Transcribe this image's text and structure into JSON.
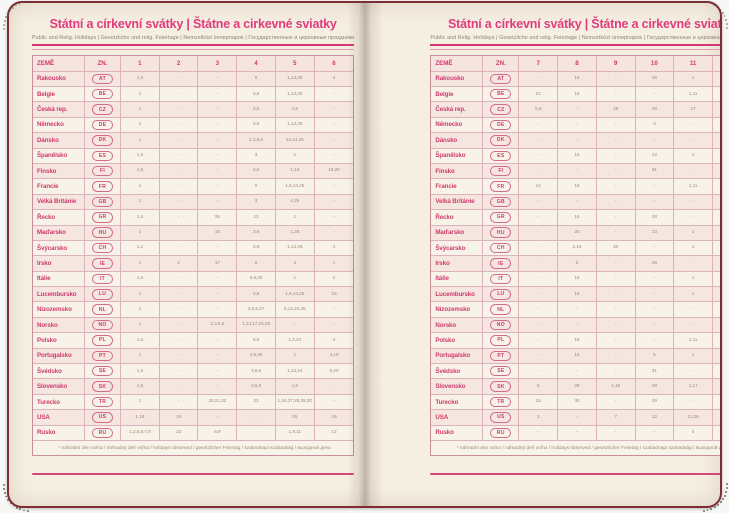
{
  "book": {
    "shared": {
      "title": "Státní a církevní svátky | Štátne a cirkevné sviatky",
      "subtitle": "Public and Relig. Holidays | Gesetzliche und relig. Feiertage | Nemzetközi ünnepnapok | Государственные и церковные праздники",
      "footnote": "* náhradní den volna / náhradný deň voľna / holidays observed / gesetzlicher Feiertag / szabadnapi szabadság / выходной день"
    },
    "left": {
      "columns": [
        "ZEMĚ",
        "ZN.",
        "1",
        "2",
        "3",
        "4",
        "5",
        "6"
      ],
      "rows": [
        {
          "country": "Rakousko",
          "code": "AT",
          "months": [
            "1,6",
            "-",
            "-",
            "6",
            "1,14,25",
            "4"
          ]
        },
        {
          "country": "Belgie",
          "code": "BE",
          "months": [
            "1",
            "-",
            "-",
            "3,6",
            "1,14,25",
            "-"
          ]
        },
        {
          "country": "Česká rep.",
          "code": "CZ",
          "months": [
            "1",
            "-",
            "-",
            "3,6",
            "1,8",
            "-"
          ]
        },
        {
          "country": "Německo",
          "code": "DE",
          "months": [
            "1",
            "-",
            "-",
            "3,6",
            "1,14,25",
            "-"
          ]
        },
        {
          "country": "Dánsko",
          "code": "DK",
          "months": [
            "1",
            "-",
            "-",
            "2,3,5,6",
            "14,24,25",
            "-"
          ]
        },
        {
          "country": "Španělsko",
          "code": "ES",
          "months": [
            "1,6",
            "-",
            "-",
            "3",
            "1",
            "-"
          ]
        },
        {
          "country": "Finsko",
          "code": "FI",
          "months": [
            "1,6",
            "-",
            "-",
            "3,6",
            "1,14",
            "19,20"
          ]
        },
        {
          "country": "Francie",
          "code": "FR",
          "months": [
            "1",
            "-",
            "-",
            "6",
            "1,8,14,25",
            "-"
          ]
        },
        {
          "country": "Velká Británie",
          "code": "GB",
          "months": [
            "1",
            "-",
            "-",
            "3",
            "4,25",
            "-"
          ]
        },
        {
          "country": "Řecko",
          "code": "GR",
          "months": [
            "1,6",
            "-",
            "25",
            "13",
            "1",
            "-"
          ]
        },
        {
          "country": "Maďarsko",
          "code": "HU",
          "months": [
            "1",
            "-",
            "15",
            "3,6",
            "1,25",
            "-"
          ]
        },
        {
          "country": "Švýcarsko",
          "code": "CH",
          "months": [
            "1,2",
            "-",
            "-",
            "3,6",
            "1,14,25",
            "4"
          ]
        },
        {
          "country": "Irsko",
          "code": "IE",
          "months": [
            "1",
            "2",
            "17",
            "6",
            "4",
            "1"
          ]
        },
        {
          "country": "Itálie",
          "code": "IT",
          "months": [
            "1,6",
            "-",
            "-",
            "5,6,25",
            "1",
            "2"
          ]
        },
        {
          "country": "Lucembursko",
          "code": "LU",
          "months": [
            "1",
            "-",
            "-",
            "3,6",
            "1,9,14,25",
            "23"
          ]
        },
        {
          "country": "Nizozemsko",
          "code": "NL",
          "months": [
            "1",
            "-",
            "-",
            "3,5,6,27",
            "5,14,24,25",
            "-"
          ]
        },
        {
          "country": "Norsko",
          "code": "NO",
          "months": [
            "1",
            "-",
            "2,3,5,6",
            "1,14,17,24,25",
            "-",
            "-"
          ]
        },
        {
          "country": "Polsko",
          "code": "PL",
          "months": [
            "1,6",
            "-",
            "-",
            "5,6",
            "1,3,24",
            "4"
          ]
        },
        {
          "country": "Portugalsko",
          "code": "PT",
          "months": [
            "1",
            "-",
            "-",
            "3,5,25",
            "1",
            "4,10"
          ]
        },
        {
          "country": "Švédsko",
          "code": "SE",
          "months": [
            "1,6",
            "-",
            "-",
            "3,5,6",
            "1,14,24",
            "6,20"
          ]
        },
        {
          "country": "Slovensko",
          "code": "SK",
          "months": [
            "1,6",
            "-",
            "-",
            "3,5,6",
            "1,8",
            "-"
          ]
        },
        {
          "country": "Turecko",
          "code": "TR",
          "months": [
            "1",
            "-",
            "20,21,22",
            "23",
            "1,19,27,28,29,30",
            "-"
          ]
        },
        {
          "country": "USA",
          "code": "US",
          "months": [
            "1,19",
            "16",
            "-",
            "-",
            "25",
            "19"
          ]
        },
        {
          "country": "Rusko",
          "code": "RU",
          "months": [
            "1,2,5,6,7,8",
            "23",
            "8,9",
            "-",
            "1,9,11",
            "12"
          ]
        }
      ]
    },
    "right": {
      "columns": [
        "ZEMĚ",
        "ZN.",
        "7",
        "8",
        "9",
        "10",
        "11",
        "12"
      ],
      "rows": [
        {
          "country": "Rakousko",
          "code": "AT",
          "months": [
            "-",
            "15",
            "-",
            "26",
            "1",
            "8,25,26"
          ]
        },
        {
          "country": "Belgie",
          "code": "BE",
          "months": [
            "21",
            "15",
            "-",
            "-",
            "1,11",
            "25"
          ]
        },
        {
          "country": "Česká rep.",
          "code": "CZ",
          "months": [
            "5,6",
            "-",
            "28",
            "28",
            "17",
            "24,25,26"
          ]
        },
        {
          "country": "Německo",
          "code": "DE",
          "months": [
            "-",
            "-",
            "-",
            "3",
            "-",
            "25,26"
          ]
        },
        {
          "country": "Dánsko",
          "code": "DK",
          "months": [
            "-",
            "-",
            "-",
            "-",
            "-",
            "25,26"
          ]
        },
        {
          "country": "Španělsko",
          "code": "ES",
          "months": [
            "-",
            "15",
            "-",
            "12",
            "1",
            "6,7,8,25"
          ]
        },
        {
          "country": "Finsko",
          "code": "FI",
          "months": [
            "-",
            "-",
            "-",
            "31",
            "-",
            "6,24,25,26"
          ]
        },
        {
          "country": "Francie",
          "code": "FR",
          "months": [
            "14",
            "15",
            "-",
            "-",
            "1,11",
            "25"
          ]
        },
        {
          "country": "Velká Británie",
          "code": "GB",
          "months": [
            "-",
            "-",
            "-",
            "-",
            "-",
            "25,26,28"
          ]
        },
        {
          "country": "Řecko",
          "code": "GR",
          "months": [
            "-",
            "15",
            "-",
            "28",
            "-",
            "25,26"
          ]
        },
        {
          "country": "Maďarsko",
          "code": "HU",
          "months": [
            "-",
            "20",
            "-",
            "23",
            "1",
            "25,26"
          ]
        },
        {
          "country": "Švýcarsko",
          "code": "CH",
          "months": [
            "-",
            "1,15",
            "20",
            "-",
            "1",
            "8,25,26"
          ]
        },
        {
          "country": "Irsko",
          "code": "IE",
          "months": [
            "-",
            "3",
            "-",
            "26",
            "-",
            "25,28"
          ]
        },
        {
          "country": "Itálie",
          "code": "IT",
          "months": [
            "-",
            "15",
            "-",
            "-",
            "1",
            "8,25,26"
          ]
        },
        {
          "country": "Lucembursko",
          "code": "LU",
          "months": [
            "-",
            "15",
            "-",
            "-",
            "1",
            "25,26"
          ]
        },
        {
          "country": "Nizozemsko",
          "code": "NL",
          "months": [
            "-",
            "-",
            "-",
            "-",
            "-",
            "25,26"
          ]
        },
        {
          "country": "Norsko",
          "code": "NO",
          "months": [
            "-",
            "-",
            "-",
            "-",
            "-",
            "25,26"
          ]
        },
        {
          "country": "Polsko",
          "code": "PL",
          "months": [
            "-",
            "15",
            "-",
            "-",
            "1,11",
            "25,26"
          ]
        },
        {
          "country": "Portugalsko",
          "code": "PT",
          "months": [
            "-",
            "15",
            "-",
            "5",
            "1",
            "1,8,25"
          ]
        },
        {
          "country": "Švédsko",
          "code": "SE",
          "months": [
            "-",
            "-",
            "-",
            "31",
            "-",
            "25,26"
          ]
        },
        {
          "country": "Slovensko",
          "code": "SK",
          "months": [
            "5",
            "29",
            "1,15",
            "28",
            "1,17",
            "24,25,26"
          ]
        },
        {
          "country": "Turecko",
          "code": "TR",
          "months": [
            "15",
            "30",
            "-",
            "29",
            "-",
            "-"
          ]
        },
        {
          "country": "USA",
          "code": "US",
          "months": [
            "3",
            "-",
            "7",
            "12",
            "11,26",
            "25"
          ]
        },
        {
          "country": "Rusko",
          "code": "RU",
          "months": [
            "-",
            "-",
            "-",
            "-",
            "4",
            "-"
          ]
        }
      ]
    }
  },
  "colors": {
    "accent_pink": "#e23b7e",
    "table_line": "#dcb3bd",
    "cover_red": "#7e2d34",
    "page_cream": "#f5efe2",
    "value_text": "#a18b7a"
  }
}
